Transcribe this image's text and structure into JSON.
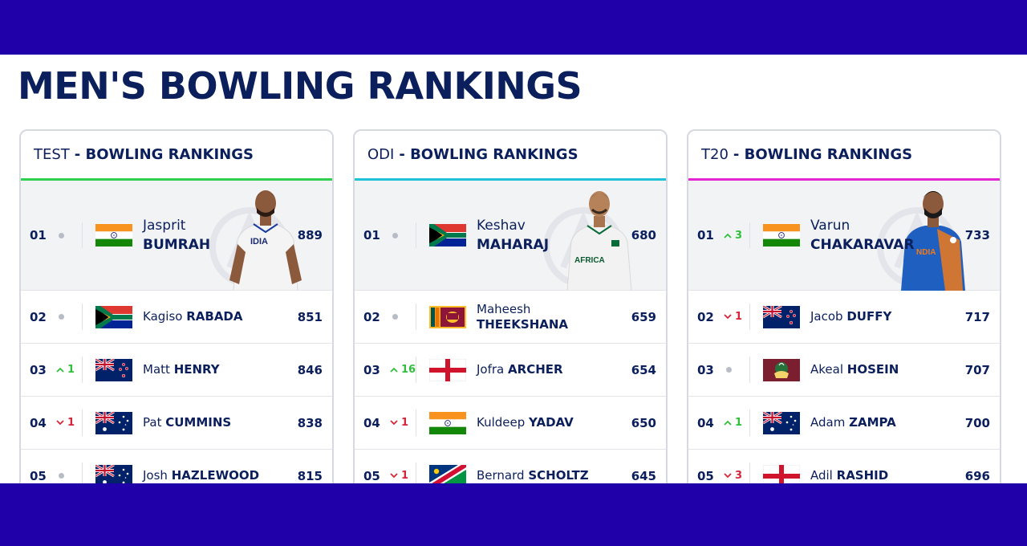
{
  "page": {
    "title": "MEN'S BOWLING RANKINGS"
  },
  "colors": {
    "band": "#2000a8",
    "navy": "#0b1f5c",
    "up": "#2fbf3a",
    "down": "#d6243a",
    "test_accent": "#2fd04f",
    "odi_accent": "#1fc2d6",
    "t20_accent": "#e426d2"
  },
  "cards": [
    {
      "format": "TEST",
      "heading_rest": "- BOWLING RANKINGS",
      "featured": {
        "rank": "01",
        "move_dir": "same",
        "move_value": "",
        "flag": "india-flag-icon",
        "first": "Jasprit",
        "last": "BUMRAH",
        "rating": "889",
        "photo": "player-photo-bumrah"
      },
      "rows": [
        {
          "rank": "02",
          "move_dir": "same",
          "move_value": "",
          "flag": "south-africa-flag-icon",
          "first": "Kagiso",
          "last": "RABADA",
          "rating": "851"
        },
        {
          "rank": "03",
          "move_dir": "up",
          "move_value": "1",
          "flag": "new-zealand-flag-icon",
          "first": "Matt",
          "last": "HENRY",
          "rating": "846"
        },
        {
          "rank": "04",
          "move_dir": "down",
          "move_value": "1",
          "flag": "australia-flag-icon",
          "first": "Pat",
          "last": "CUMMINS",
          "rating": "838"
        },
        {
          "rank": "05",
          "move_dir": "same",
          "move_value": "",
          "flag": "australia-flag-icon",
          "first": "Josh",
          "last": "HAZLEWOOD",
          "rating": "815"
        }
      ]
    },
    {
      "format": "ODI",
      "heading_rest": "- BOWLING RANKINGS",
      "featured": {
        "rank": "01",
        "move_dir": "same",
        "move_value": "",
        "flag": "south-africa-flag-icon",
        "first": "Keshav",
        "last": "MAHARAJ",
        "rating": "680",
        "photo": "player-photo-maharaj"
      },
      "rows": [
        {
          "rank": "02",
          "move_dir": "same",
          "move_value": "",
          "flag": "sri-lanka-flag-icon",
          "first": "Maheesh",
          "last": "THEEKSHANA",
          "rating": "659",
          "two_line": true
        },
        {
          "rank": "03",
          "move_dir": "up",
          "move_value": "16",
          "flag": "england-flag-icon",
          "first": "Jofra",
          "last": "ARCHER",
          "rating": "654"
        },
        {
          "rank": "04",
          "move_dir": "down",
          "move_value": "1",
          "flag": "india-flag-icon",
          "first": "Kuldeep",
          "last": "YADAV",
          "rating": "650"
        },
        {
          "rank": "05",
          "move_dir": "down",
          "move_value": "1",
          "flag": "namibia-flag-icon",
          "first": "Bernard",
          "last": "SCHOLTZ",
          "rating": "645"
        }
      ]
    },
    {
      "format": "T20",
      "heading_rest": "- BOWLING RANKINGS",
      "featured": {
        "rank": "01",
        "move_dir": "up",
        "move_value": "3",
        "flag": "india-flag-icon",
        "first": "Varun",
        "last": "CHAKARAVAR",
        "rating": "733",
        "photo": "player-photo-chakaravarthy"
      },
      "rows": [
        {
          "rank": "02",
          "move_dir": "down",
          "move_value": "1",
          "flag": "new-zealand-flag-icon",
          "first": "Jacob",
          "last": "DUFFY",
          "rating": "717"
        },
        {
          "rank": "03",
          "move_dir": "same",
          "move_value": "",
          "flag": "west-indies-flag-icon",
          "first": "Akeal",
          "last": "HOSEIN",
          "rating": "707"
        },
        {
          "rank": "04",
          "move_dir": "up",
          "move_value": "1",
          "flag": "australia-flag-icon",
          "first": "Adam",
          "last": "ZAMPA",
          "rating": "700"
        },
        {
          "rank": "05",
          "move_dir": "down",
          "move_value": "3",
          "flag": "england-flag-icon",
          "first": "Adil",
          "last": "RASHID",
          "rating": "696"
        }
      ]
    }
  ]
}
